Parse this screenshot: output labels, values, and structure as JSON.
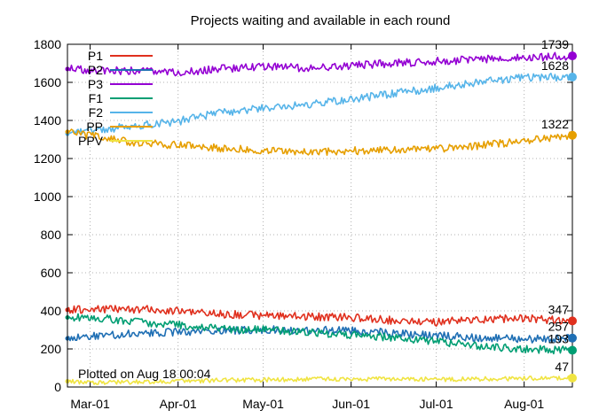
{
  "chart_data": {
    "type": "line",
    "title": "Projects waiting and available in each round",
    "xlabel": "",
    "ylabel": "",
    "ylim": [
      0,
      1800
    ],
    "yticks": [
      0,
      200,
      400,
      600,
      800,
      1000,
      1200,
      1400,
      1600,
      1800
    ],
    "x_start": "2020-02-22",
    "x_end": "2020-08-18",
    "xticks": [
      {
        "label": "Mar-01",
        "date": "2020-03-01"
      },
      {
        "label": "Apr-01",
        "date": "2020-04-01"
      },
      {
        "label": "May-01",
        "date": "2020-05-01"
      },
      {
        "label": "Jun-01",
        "date": "2020-06-01"
      },
      {
        "label": "Jul-01",
        "date": "2020-07-01"
      },
      {
        "label": "Aug-01",
        "date": "2020-08-01"
      }
    ],
    "grid": true,
    "legend_position": "top-left",
    "annotation": "Plotted on Aug 18 00:04",
    "series": [
      {
        "name": "P1",
        "color": "#e0301e",
        "end_label": "347",
        "points": [
          [
            "2020-02-22",
            405
          ],
          [
            "2020-03-01",
            410
          ],
          [
            "2020-03-15",
            410
          ],
          [
            "2020-04-01",
            400
          ],
          [
            "2020-04-15",
            385
          ],
          [
            "2020-05-01",
            375
          ],
          [
            "2020-05-15",
            370
          ],
          [
            "2020-06-01",
            365
          ],
          [
            "2020-06-15",
            350
          ],
          [
            "2020-07-01",
            340
          ],
          [
            "2020-07-15",
            355
          ],
          [
            "2020-08-01",
            360
          ],
          [
            "2020-08-18",
            347
          ]
        ]
      },
      {
        "name": "P2",
        "color": "#1f6fb4",
        "end_label": "257",
        "points": [
          [
            "2020-02-22",
            255
          ],
          [
            "2020-03-01",
            265
          ],
          [
            "2020-03-15",
            280
          ],
          [
            "2020-04-01",
            290
          ],
          [
            "2020-04-15",
            295
          ],
          [
            "2020-05-01",
            300
          ],
          [
            "2020-05-15",
            300
          ],
          [
            "2020-06-01",
            295
          ],
          [
            "2020-06-15",
            285
          ],
          [
            "2020-07-01",
            270
          ],
          [
            "2020-07-15",
            260
          ],
          [
            "2020-08-01",
            250
          ],
          [
            "2020-08-18",
            257
          ]
        ]
      },
      {
        "name": "P3",
        "color": "#9400d3",
        "end_label": "1739",
        "points": [
          [
            "2020-02-22",
            1670
          ],
          [
            "2020-03-01",
            1665
          ],
          [
            "2020-03-15",
            1660
          ],
          [
            "2020-04-01",
            1650
          ],
          [
            "2020-04-15",
            1670
          ],
          [
            "2020-05-01",
            1685
          ],
          [
            "2020-05-15",
            1675
          ],
          [
            "2020-06-01",
            1690
          ],
          [
            "2020-06-15",
            1700
          ],
          [
            "2020-07-01",
            1710
          ],
          [
            "2020-07-15",
            1720
          ],
          [
            "2020-08-01",
            1730
          ],
          [
            "2020-08-18",
            1739
          ]
        ]
      },
      {
        "name": "F1",
        "color": "#009e73",
        "end_label": "193",
        "points": [
          [
            "2020-02-22",
            365
          ],
          [
            "2020-03-01",
            370
          ],
          [
            "2020-03-15",
            345
          ],
          [
            "2020-04-01",
            325
          ],
          [
            "2020-04-15",
            305
          ],
          [
            "2020-05-01",
            300
          ],
          [
            "2020-05-15",
            290
          ],
          [
            "2020-06-01",
            275
          ],
          [
            "2020-06-15",
            260
          ],
          [
            "2020-07-01",
            240
          ],
          [
            "2020-07-15",
            215
          ],
          [
            "2020-08-01",
            200
          ],
          [
            "2020-08-18",
            193
          ]
        ]
      },
      {
        "name": "F2",
        "color": "#56b4e9",
        "end_label": "1628",
        "points": [
          [
            "2020-02-22",
            1330
          ],
          [
            "2020-03-01",
            1345
          ],
          [
            "2020-03-15",
            1370
          ],
          [
            "2020-04-01",
            1395
          ],
          [
            "2020-04-15",
            1440
          ],
          [
            "2020-05-01",
            1465
          ],
          [
            "2020-05-15",
            1480
          ],
          [
            "2020-06-01",
            1510
          ],
          [
            "2020-06-15",
            1540
          ],
          [
            "2020-07-01",
            1570
          ],
          [
            "2020-07-15",
            1600
          ],
          [
            "2020-08-01",
            1625
          ],
          [
            "2020-08-18",
            1628
          ]
        ]
      },
      {
        "name": "PP",
        "color": "#e69f00",
        "end_label": "1322",
        "points": [
          [
            "2020-02-22",
            1340
          ],
          [
            "2020-03-01",
            1320
          ],
          [
            "2020-03-15",
            1285
          ],
          [
            "2020-04-01",
            1270
          ],
          [
            "2020-04-15",
            1255
          ],
          [
            "2020-05-01",
            1240
          ],
          [
            "2020-05-15",
            1230
          ],
          [
            "2020-06-01",
            1240
          ],
          [
            "2020-06-15",
            1245
          ],
          [
            "2020-07-01",
            1250
          ],
          [
            "2020-07-15",
            1265
          ],
          [
            "2020-08-01",
            1290
          ],
          [
            "2020-08-18",
            1322
          ]
        ]
      },
      {
        "name": "PPV",
        "color": "#f0e442",
        "end_label": "47",
        "points": [
          [
            "2020-02-22",
            30
          ],
          [
            "2020-03-01",
            22
          ],
          [
            "2020-03-15",
            25
          ],
          [
            "2020-04-01",
            30
          ],
          [
            "2020-04-15",
            35
          ],
          [
            "2020-05-01",
            38
          ],
          [
            "2020-05-15",
            40
          ],
          [
            "2020-06-01",
            42
          ],
          [
            "2020-06-15",
            42
          ],
          [
            "2020-07-01",
            40
          ],
          [
            "2020-07-15",
            42
          ],
          [
            "2020-08-01",
            45
          ],
          [
            "2020-08-18",
            47
          ]
        ]
      }
    ]
  }
}
